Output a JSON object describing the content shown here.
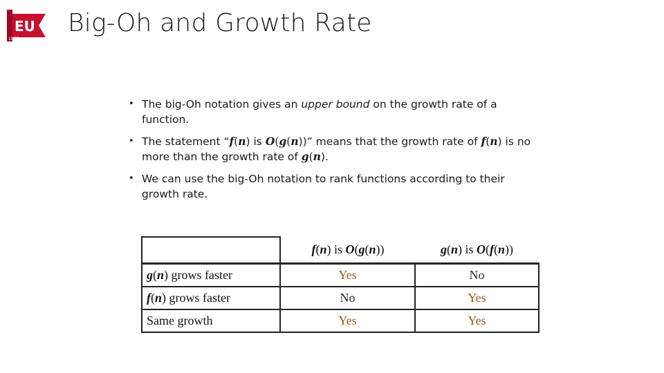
{
  "logo": {
    "text": "EU",
    "year": "1857",
    "colors": {
      "pennant": "#c8102e",
      "text": "#ffffff"
    }
  },
  "title": "Big-Oh and Growth Rate",
  "bullets": [
    {
      "parts": [
        "The big-Oh notation gives an ",
        "upper bound",
        " on the growth rate of a function."
      ]
    },
    {
      "parts": [
        "The statement “",
        "f",
        "(",
        "n",
        ") is ",
        "O",
        "(",
        "g",
        "(",
        "n",
        "))” means that the growth rate of ",
        "f",
        "(",
        "n",
        ") is no more than the growth rate of ",
        "g",
        "(",
        "n",
        ")."
      ]
    },
    {
      "text": "We can use the big-Oh notation to rank functions according to their growth rate."
    }
  ],
  "table": {
    "headers": {
      "col1": {
        "a": "f",
        "b": "(",
        "c": "n",
        "d": ") is ",
        "e": "O",
        "f": "(",
        "g": "g",
        "h": "(",
        "i": "n",
        "j": "))"
      },
      "col2": {
        "a": "g",
        "b": "(",
        "c": "n",
        "d": ") is ",
        "e": "O",
        "f": "(",
        "g": "f",
        "h": "(",
        "i": "n",
        "j": "))"
      }
    },
    "rows": [
      {
        "label_fn": "g",
        "label_open": "(",
        "label_var": "n",
        "label_rest": ") grows faster",
        "col1": "Yes",
        "col2": "No"
      },
      {
        "label_fn": "f",
        "label_open": "(",
        "label_var": "n",
        "label_rest": ") grows faster",
        "col1": "No",
        "col2": "Yes"
      },
      {
        "label_text": "Same growth",
        "col1": "Yes",
        "col2": "Yes"
      }
    ],
    "colors": {
      "yes": "#9a5a12",
      "no": "#2a2a2a"
    }
  }
}
